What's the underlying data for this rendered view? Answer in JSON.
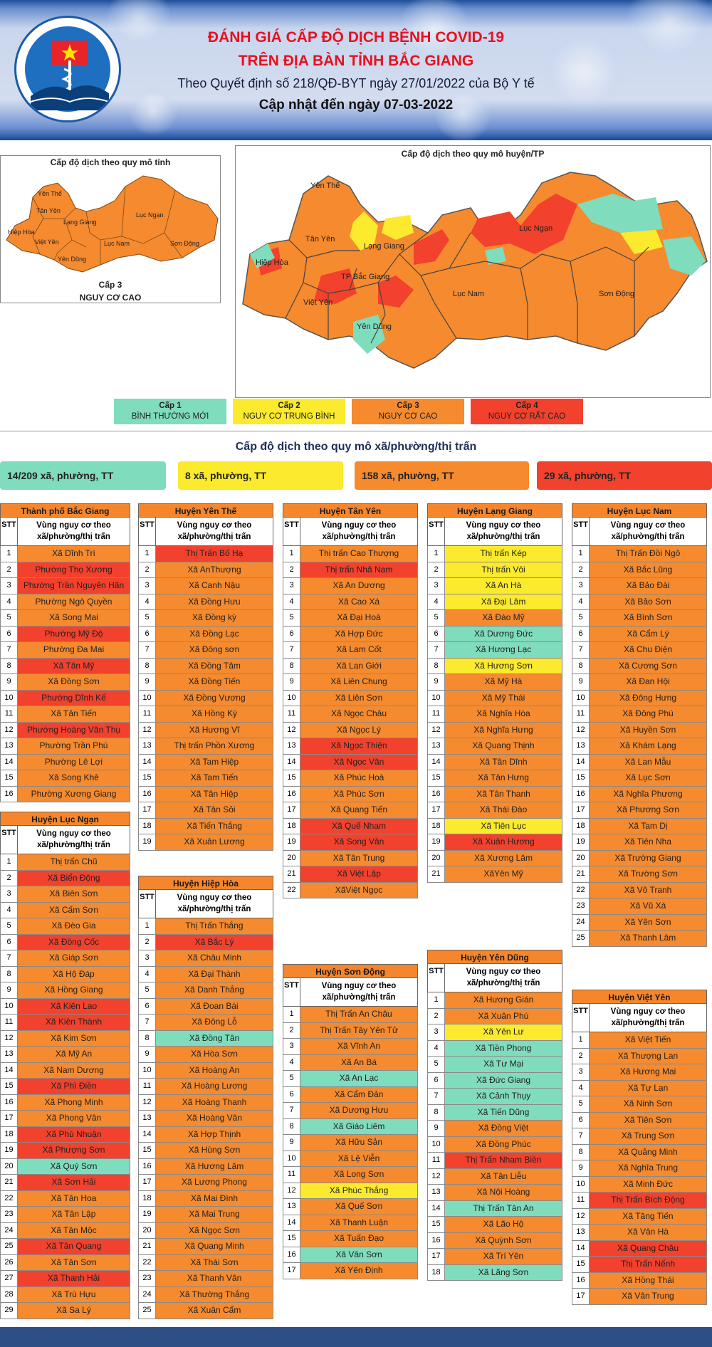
{
  "header": {
    "logo_text": "SỞ Y TẾ BẮC GIANG — BAC GIANG DEPARTMENT OF HEALTH",
    "title_line1": "ĐÁNH GIÁ CẤP ĐỘ DỊCH BỆNH COVID-19",
    "title_line2": "TRÊN ĐỊA BÀN TỈNH BẮC GIANG",
    "subtitle": "Theo Quyết định số 218/QĐ-BYT ngày 27/01/2022 của Bộ Y tế",
    "update": "Cập nhật đến ngày 07-03-2022"
  },
  "province_map": {
    "title": "Cấp độ dịch theo quy mô tỉnh",
    "level": "Cấp 3",
    "level_desc": "NGUY CƠ CAO",
    "labels": [
      "Yên Thế",
      "Tân Yên",
      "Lục Ngạn",
      "Lạng Giang",
      "Sơn Động",
      "Hiệp Hòa",
      "Lục Nam",
      "Việt Yên",
      "Yên Dũng"
    ]
  },
  "district_map": {
    "title": "Cấp độ dịch theo quy mô huyện/TP",
    "labels": [
      "Yên Thế",
      "Tân Yên",
      "Lạng Giang",
      "Lục Ngạn",
      "Hiệp Hòa",
      "TP Bắc Giang",
      "Việt Yên",
      "Lục Nam",
      "Sơn Động",
      "Yên Dũng"
    ]
  },
  "legend": [
    {
      "level": "Cấp 1",
      "desc": "BÌNH THƯỜNG MỚI",
      "color": "#7fdcbd"
    },
    {
      "level": "Cấp 2",
      "desc": "NGUY CƠ TRUNG BÌNH",
      "color": "#fbea2d"
    },
    {
      "level": "Cấp 3",
      "desc": "NGUY CƠ CAO",
      "color": "#f58a2e"
    },
    {
      "level": "Cấp 4",
      "desc": "NGUY CƠ RẤT CAO",
      "color": "#f2412c"
    }
  ],
  "commune_section": {
    "title": "Cấp độ dịch theo quy mô xã/phường/thị trấn",
    "summary": [
      "14/209 xã, phường, TT",
      "8 xã, phường, TT",
      "158 xã, phường, TT",
      "29 xã, phường, TT"
    ]
  },
  "table_headers": {
    "stt": "STT",
    "zone": "Vùng nguy cơ theo xã/phường/thị trấn"
  },
  "districts": {
    "tp_bac_giang": {
      "name": "Thành phố Bắc Giang",
      "rows": [
        [
          "1",
          "Xã Dĩnh Trì",
          3
        ],
        [
          "2",
          "Phường Thọ Xương",
          4
        ],
        [
          "3",
          "Phường Trần Nguyên Hãn",
          4
        ],
        [
          "4",
          "Phường Ngô Quyền",
          3
        ],
        [
          "5",
          "Xã Song Mai",
          3
        ],
        [
          "6",
          "Phường Mỹ Độ",
          4
        ],
        [
          "7",
          "Phường Đa Mai",
          3
        ],
        [
          "8",
          "Xã Tân Mỹ",
          4
        ],
        [
          "9",
          "Xã Đồng Sơn",
          3
        ],
        [
          "10",
          "Phường Dĩnh Kế",
          4
        ],
        [
          "11",
          "Xã Tân Tiến",
          3
        ],
        [
          "12",
          "Phường Hoàng Văn Thụ",
          4
        ],
        [
          "13",
          "Phường Trần Phú",
          3
        ],
        [
          "14",
          "Phường Lê Lợi",
          3
        ],
        [
          "15",
          "Xã Song Khê",
          3
        ],
        [
          "16",
          "Phường Xương Giang",
          3
        ]
      ]
    },
    "luc_ngan": {
      "name": "Huyện Lục Ngạn",
      "rows": [
        [
          "1",
          "Thị trấn Chũ",
          3
        ],
        [
          "2",
          "Xã Biển Động",
          4
        ],
        [
          "3",
          "Xã Biên Sơn",
          3
        ],
        [
          "4",
          "Xã Cấm Sơn",
          3
        ],
        [
          "5",
          "Xã Đèo Gia",
          3
        ],
        [
          "6",
          "Xã Đồng Cốc",
          4
        ],
        [
          "7",
          "Xã Giáp Sơn",
          3
        ],
        [
          "8",
          "Xã Hộ Đáp",
          3
        ],
        [
          "9",
          "Xã Hồng Giang",
          3
        ],
        [
          "10",
          "Xã Kiên Lao",
          4
        ],
        [
          "11",
          "Xã Kiên Thành",
          4
        ],
        [
          "12",
          "Xã Kim Sơn",
          3
        ],
        [
          "13",
          "Xã Mỹ An",
          3
        ],
        [
          "14",
          "Xã Nam Dương",
          3
        ],
        [
          "15",
          "Xã Phì Điền",
          4
        ],
        [
          "16",
          "Xã Phong Minh",
          3
        ],
        [
          "17",
          "Xã Phong Vân",
          3
        ],
        [
          "18",
          "Xã Phú Nhuận",
          4
        ],
        [
          "19",
          "Xã Phượng Sơn",
          4
        ],
        [
          "20",
          "Xã Quý Sơn",
          1
        ],
        [
          "21",
          "Xã Sơn Hải",
          4
        ],
        [
          "22",
          "Xã Tân Hoa",
          3
        ],
        [
          "23",
          "Xã Tân Lập",
          3
        ],
        [
          "24",
          "Xã Tân Mộc",
          3
        ],
        [
          "25",
          "Xã Tân Quang",
          4
        ],
        [
          "26",
          "Xã Tân Sơn",
          3
        ],
        [
          "27",
          "Xã Thanh Hải",
          4
        ],
        [
          "28",
          "Xã Trù Hựu",
          3
        ],
        [
          "29",
          "Xã Sa Lý",
          3
        ]
      ]
    },
    "yen_the": {
      "name": "Huyện Yên Thế",
      "rows": [
        [
          "1",
          "Thị Trấn Bố Hạ",
          4
        ],
        [
          "2",
          "Xã AnThượng",
          3
        ],
        [
          "3",
          "Xã Canh Nậu",
          3
        ],
        [
          "4",
          "Xã Đồng Hưu",
          3
        ],
        [
          "5",
          "Xã Đồng kỳ",
          3
        ],
        [
          "6",
          "Xã Đồng Lạc",
          3
        ],
        [
          "7",
          "Xã Đông sơn",
          3
        ],
        [
          "8",
          "Xã Đồng Tâm",
          3
        ],
        [
          "9",
          "Xã Đồng Tiến",
          3
        ],
        [
          "10",
          "Xã Đồng Vương",
          3
        ],
        [
          "11",
          "Xã Hồng Kỳ",
          3
        ],
        [
          "12",
          "Xã Hương Vĩ",
          3
        ],
        [
          "13",
          "Thị trấn Phồn Xương",
          3
        ],
        [
          "14",
          "Xã Tam Hiệp",
          3
        ],
        [
          "15",
          "Xã Tam Tiến",
          3
        ],
        [
          "16",
          "Xã Tân Hiệp",
          3
        ],
        [
          "17",
          "Xã Tân Sỏi",
          3
        ],
        [
          "18",
          "Xã Tiến Thắng",
          3
        ],
        [
          "19",
          "Xã Xuân Lương",
          3
        ]
      ]
    },
    "hiep_hoa": {
      "name": "Huyện Hiệp Hòa",
      "rows": [
        [
          "1",
          "Thị Trấn Thắng",
          3
        ],
        [
          "2",
          "Xã Bắc Lý",
          4
        ],
        [
          "3",
          "Xã Châu Minh",
          3
        ],
        [
          "4",
          "Xã Đại Thành",
          3
        ],
        [
          "5",
          "Xã Danh Thắng",
          3
        ],
        [
          "6",
          "Xã Đoan Bái",
          3
        ],
        [
          "7",
          "Xã Đông Lỗ",
          3
        ],
        [
          "8",
          "Xã Đồng Tân",
          1
        ],
        [
          "9",
          "Xã Hòa Sơn",
          3
        ],
        [
          "10",
          "Xã Hoàng An",
          3
        ],
        [
          "11",
          "Xã Hoàng Lương",
          3
        ],
        [
          "12",
          "Xã Hoàng Thanh",
          3
        ],
        [
          "13",
          "Xã Hoàng Vân",
          3
        ],
        [
          "14",
          "Xã Hợp Thịnh",
          3
        ],
        [
          "15",
          "Xã Hùng Sơn",
          3
        ],
        [
          "16",
          "Xã Hương Lâm",
          3
        ],
        [
          "17",
          "Xã Lương Phong",
          3
        ],
        [
          "18",
          "Xã Mai Đình",
          3
        ],
        [
          "19",
          "Xã Mai Trung",
          3
        ],
        [
          "20",
          "Xã Ngọc Sơn",
          3
        ],
        [
          "21",
          "Xã Quang Minh",
          3
        ],
        [
          "22",
          "Xã Thái Sơn",
          3
        ],
        [
          "23",
          "Xã Thanh Vân",
          3
        ],
        [
          "24",
          "Xã Thường Thắng",
          3
        ],
        [
          "25",
          "Xã Xuân Cẩm",
          3
        ]
      ]
    },
    "tan_yen": {
      "name": "Huyện Tân Yên",
      "rows": [
        [
          "1",
          "Thị trấn Cao Thượng",
          3
        ],
        [
          "2",
          "Thị trấn Nhã Nam",
          4
        ],
        [
          "3",
          "Xã An Dương",
          3
        ],
        [
          "4",
          "Xã Cao Xá",
          3
        ],
        [
          "5",
          "Xã Đại Hoá",
          3
        ],
        [
          "6",
          "Xã Hợp Đức",
          3
        ],
        [
          "7",
          "Xã Lam Cốt",
          3
        ],
        [
          "8",
          "Xã Lan Giới",
          3
        ],
        [
          "9",
          "Xã Liên Chung",
          3
        ],
        [
          "10",
          "Xã Liên Sơn",
          3
        ],
        [
          "11",
          "Xã Ngọc Châu",
          3
        ],
        [
          "12",
          "Xã Ngọc Lý",
          3
        ],
        [
          "13",
          "Xã Ngọc Thiện",
          4
        ],
        [
          "14",
          "Xã Ngọc Vân",
          4
        ],
        [
          "15",
          "Xã Phúc Hoà",
          3
        ],
        [
          "16",
          "Xã Phúc Sơn",
          3
        ],
        [
          "17",
          "Xã Quang Tiến",
          3
        ],
        [
          "18",
          "Xã Quế Nham",
          4
        ],
        [
          "19",
          "Xã Song Vân",
          4
        ],
        [
          "20",
          "Xã Tân Trung",
          3
        ],
        [
          "21",
          "Xã Việt Lập",
          4
        ],
        [
          "22",
          "XãViệt Ngọc",
          3
        ]
      ]
    },
    "son_dong": {
      "name": "Huyện Sơn Động",
      "rows": [
        [
          "1",
          "Thị Trấn An Châu",
          3
        ],
        [
          "2",
          "Thị Trấn Tây Yên Tử",
          3
        ],
        [
          "3",
          "Xã Vĩnh An",
          3
        ],
        [
          "4",
          "Xã An Bá",
          3
        ],
        [
          "5",
          "Xã An Lạc",
          1
        ],
        [
          "6",
          "Xã Cẩm Đản",
          3
        ],
        [
          "7",
          "Xã Dương Hưu",
          3
        ],
        [
          "8",
          "Xã Giáo Liêm",
          1
        ],
        [
          "9",
          "Xã Hữu Sản",
          3
        ],
        [
          "10",
          "Xã Lệ Viễn",
          3
        ],
        [
          "11",
          "Xã Long Sơn",
          3
        ],
        [
          "12",
          "Xã Phúc Thắng",
          2
        ],
        [
          "13",
          "Xã Quế Sơn",
          3
        ],
        [
          "14",
          "Xã Thanh Luận",
          3
        ],
        [
          "15",
          "Xã Tuấn Đạo",
          3
        ],
        [
          "16",
          "Xã Vân Sơn",
          1
        ],
        [
          "17",
          "Xã Yên Định",
          3
        ]
      ]
    },
    "lang_giang": {
      "name": "Huyện Lạng Giang",
      "rows": [
        [
          "1",
          "Thị trấn Kép",
          2
        ],
        [
          "2",
          "Thị trấn Vôi",
          2
        ],
        [
          "3",
          "Xã An Hà",
          2
        ],
        [
          "4",
          "Xã Đại Lâm",
          2
        ],
        [
          "5",
          "Xã Đào Mỹ",
          3
        ],
        [
          "6",
          "Xã Dương Đức",
          1
        ],
        [
          "7",
          "Xã Hương Lạc",
          1
        ],
        [
          "8",
          "Xã Hương Sơn",
          2
        ],
        [
          "9",
          "Xã Mỹ Hà",
          3
        ],
        [
          "10",
          "Xã Mỹ Thái",
          3
        ],
        [
          "11",
          "Xã Nghĩa Hòa",
          3
        ],
        [
          "12",
          "Xã Nghĩa Hưng",
          3
        ],
        [
          "13",
          "Xã Quang Thịnh",
          3
        ],
        [
          "14",
          "Xã Tân Dĩnh",
          3
        ],
        [
          "15",
          "Xã Tân Hưng",
          3
        ],
        [
          "16",
          "Xã Tân Thanh",
          3
        ],
        [
          "17",
          "Xã Thái Đào",
          3
        ],
        [
          "18",
          "Xã Tiên Lục",
          2
        ],
        [
          "19",
          "Xã Xuân Hương",
          4
        ],
        [
          "20",
          "Xã Xương Lâm",
          3
        ],
        [
          "21",
          "XãYên Mỹ",
          3
        ]
      ]
    },
    "yen_dung": {
      "name": "Huyện Yên Dũng",
      "rows": [
        [
          "1",
          "Xã Hương Gián",
          3
        ],
        [
          "2",
          "Xã Xuân Phú",
          3
        ],
        [
          "3",
          "Xã Yên Lư",
          2
        ],
        [
          "4",
          "Xã Tiền Phong",
          1
        ],
        [
          "5",
          "Xã Tư Mại",
          1
        ],
        [
          "6",
          "Xã Đức Giang",
          1
        ],
        [
          "7",
          "Xã Cảnh Thụy",
          1
        ],
        [
          "8",
          "Xã Tiến Dũng",
          1
        ],
        [
          "9",
          "Xã Đồng Việt",
          3
        ],
        [
          "10",
          "Xã Đồng Phúc",
          3
        ],
        [
          "11",
          "Thị Trấn Nham Biền",
          4
        ],
        [
          "12",
          "Xã Tân Liễu",
          3
        ],
        [
          "13",
          "Xã Nội Hoàng",
          3
        ],
        [
          "14",
          "Thị Trấn Tân An",
          1
        ],
        [
          "15",
          "Xã Lão Hộ",
          3
        ],
        [
          "16",
          "Xã Quỳnh Sơn",
          3
        ],
        [
          "17",
          "Xã Trí Yên",
          3
        ],
        [
          "18",
          "Xã Lãng Sơn",
          1
        ]
      ]
    },
    "luc_nam": {
      "name": "Huyện Lục Nam",
      "rows": [
        [
          "1",
          "Thị Trấn Đồi Ngô",
          3
        ],
        [
          "2",
          "Xã Bắc Lũng",
          3
        ],
        [
          "3",
          "Xã Bảo Đài",
          3
        ],
        [
          "4",
          "Xã Bảo Sơn",
          3
        ],
        [
          "5",
          "Xã Bình Sơn",
          3
        ],
        [
          "6",
          "Xã Cẩm Lý",
          3
        ],
        [
          "7",
          "Xã Chu Điện",
          3
        ],
        [
          "8",
          "Xã Cương Sơn",
          3
        ],
        [
          "9",
          "Xã Đan Hội",
          3
        ],
        [
          "10",
          "Xã Đông Hưng",
          3
        ],
        [
          "11",
          "Xã Đông Phú",
          3
        ],
        [
          "12",
          "Xã Huyền Sơn",
          3
        ],
        [
          "13",
          "Xã Khám Lạng",
          3
        ],
        [
          "14",
          "Xã Lan Mẫu",
          3
        ],
        [
          "15",
          "Xã Lục Sơn",
          3
        ],
        [
          "16",
          "Xã Nghĩa Phương",
          3
        ],
        [
          "17",
          "Xã Phương Sơn",
          3
        ],
        [
          "18",
          "Xã Tam Dị",
          3
        ],
        [
          "19",
          "Xã Tiên Nha",
          3
        ],
        [
          "20",
          "Xã Trường Giang",
          3
        ],
        [
          "21",
          "Xã Trường Sơn",
          3
        ],
        [
          "22",
          "Xã Vô Tranh",
          3
        ],
        [
          "23",
          "Xã Vũ Xá",
          3
        ],
        [
          "24",
          "Xã Yên Sơn",
          3
        ],
        [
          "25",
          "Xã Thanh Lâm",
          3
        ]
      ]
    },
    "viet_yen": {
      "name": "Huyện Việt Yên",
      "rows": [
        [
          "1",
          "Xã Việt Tiến",
          3
        ],
        [
          "2",
          "Xã Thượng Lan",
          3
        ],
        [
          "3",
          "Xã Hương Mai",
          3
        ],
        [
          "4",
          "Xã Tự Lạn",
          3
        ],
        [
          "5",
          "Xã Ninh Sơn",
          3
        ],
        [
          "6",
          "Xã Tiên Sơn",
          3
        ],
        [
          "7",
          "Xã Trung Sơn",
          3
        ],
        [
          "8",
          "Xã Quảng Minh",
          3
        ],
        [
          "9",
          "Xã Nghĩa Trung",
          3
        ],
        [
          "10",
          "Xã Minh Đức",
          3
        ],
        [
          "11",
          "Thị Trấn Bích Động",
          4
        ],
        [
          "12",
          "Xã Tăng Tiến",
          3
        ],
        [
          "13",
          "Xã Vân Hà",
          3
        ],
        [
          "14",
          "Xã Quang Châu",
          4
        ],
        [
          "15",
          "Thị Trấn Nếnh",
          4
        ],
        [
          "16",
          "Xã Hồng Thái",
          3
        ],
        [
          "17",
          "Xã Vân Trung",
          3
        ]
      ]
    }
  }
}
